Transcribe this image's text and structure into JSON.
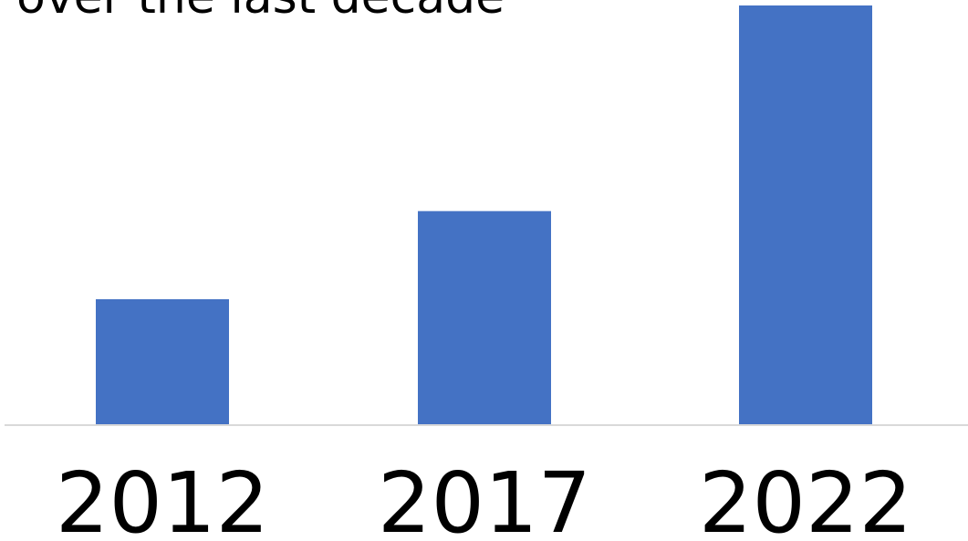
{
  "chart_data": {
    "type": "bar",
    "title": "over the last decade",
    "categories": [
      "2012",
      "2017",
      "2022"
    ],
    "values": [
      30,
      51,
      100
    ],
    "ylim": [
      0,
      100
    ],
    "grid": false,
    "legend": "none",
    "colors": {
      "bar": "#4472C4",
      "axis": "#D9D9D9",
      "text": "#000000"
    }
  }
}
